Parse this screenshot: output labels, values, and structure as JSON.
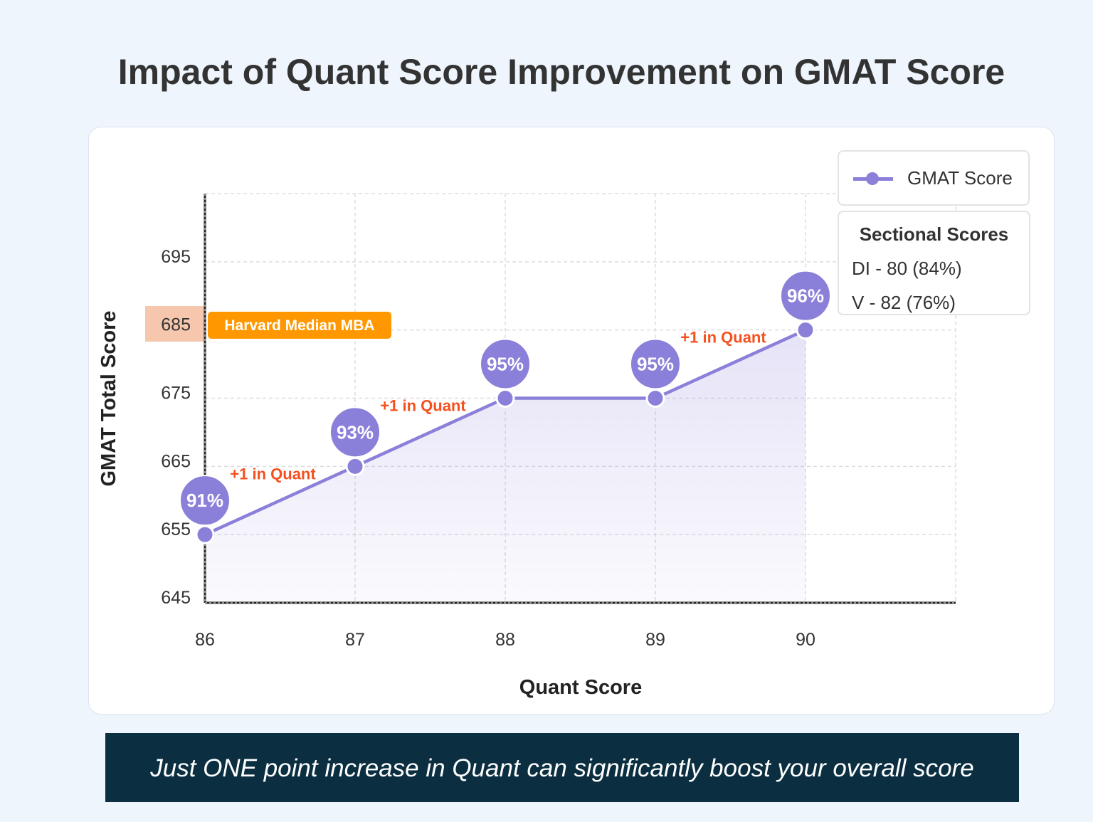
{
  "title": "Impact of Quant Score Improvement on GMAT Score",
  "chart_data": {
    "type": "line",
    "x": [
      86,
      87,
      88,
      89,
      90
    ],
    "series": [
      {
        "name": "GMAT Score",
        "values": [
          655,
          665,
          675,
          675,
          685
        ],
        "percentiles": [
          "91%",
          "93%",
          "95%",
          "95%",
          "96%"
        ],
        "color": "#8b80d9"
      }
    ],
    "xlabel": "Quant Score",
    "ylabel": "GMAT Total Score",
    "xlim": [
      86,
      91
    ],
    "ylim": [
      645,
      705
    ],
    "yticks": [
      645,
      655,
      665,
      675,
      685,
      695
    ],
    "xticks": [
      86,
      87,
      88,
      89,
      90
    ],
    "grid": true,
    "legend_position": "top-right",
    "annotations": [
      {
        "between": [
          86,
          87
        ],
        "text": "+1 in Quant"
      },
      {
        "between": [
          87,
          88
        ],
        "text": "+1 in Quant"
      },
      {
        "between": [
          89,
          90
        ],
        "text": "+1 in Quant"
      }
    ],
    "annotation_color": "#f5501e",
    "reference": {
      "y": 685,
      "label": "Harvard Median MBA",
      "color": "#ff9800",
      "highlight": "#f6c6ad"
    }
  },
  "sectional": {
    "title": "Sectional Scores",
    "items": [
      "DI - 80 (84%)",
      "V - 82 (76%)"
    ]
  },
  "banner": "Just ONE point increase in Quant can significantly boost your overall score"
}
